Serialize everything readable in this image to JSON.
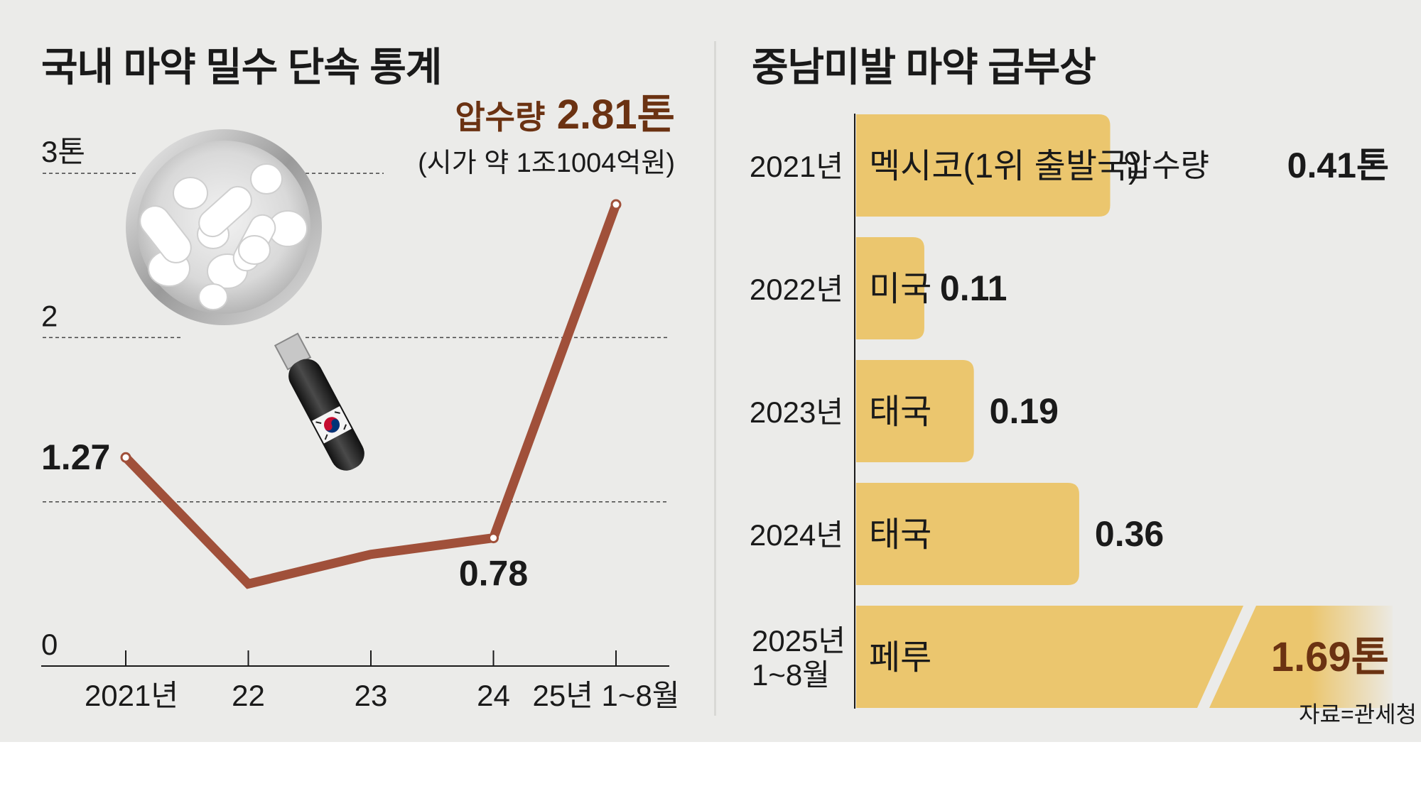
{
  "left": {
    "title": "국내 마약 밀수 단속 통계",
    "peak_note": {
      "label": "압수량",
      "value": "2.81톤",
      "sub": "(시가 약 1조1004억원)"
    }
  },
  "right": {
    "title": "중남미발 마약 급부상"
  },
  "source": "자료=관세청",
  "colors": {
    "line": "#a0503a",
    "bar": "#ebc66e",
    "peak_text": "#6b3212",
    "background": "#ebebe9"
  },
  "chart_data": [
    {
      "type": "line",
      "title": "국내 마약 밀수 단속 통계",
      "ylim": [
        0,
        3
      ],
      "y_ticks": [
        {
          "value": 0,
          "label": "0"
        },
        {
          "value": 2,
          "label": "2"
        },
        {
          "value": 3,
          "label": "3톤"
        }
      ],
      "categories": [
        "2021년",
        "22",
        "23",
        "24",
        "25년 1~8월"
      ],
      "values": [
        1.27,
        0.5,
        0.68,
        0.78,
        2.81
      ],
      "point_labels": [
        {
          "index": 0,
          "text": "1.27"
        },
        {
          "index": 3,
          "text": "0.78"
        }
      ],
      "grid": "dashed"
    },
    {
      "type": "bar",
      "orientation": "horizontal",
      "title": "중남미발 마약 급부상",
      "categories": [
        "2021년",
        "2022년",
        "2023년",
        "2024년",
        "2025년 1~8월"
      ],
      "countries": [
        "멕시코(1위 출발국)",
        "미국",
        "태국",
        "태국",
        "페루"
      ],
      "values": [
        0.41,
        0.11,
        0.19,
        0.36,
        1.69
      ],
      "value_labels": [
        "0.41톤",
        "0.11",
        "0.19",
        "0.36",
        "1.69톤"
      ],
      "value_prefix": "압수량",
      "broken_axis_index": 4
    }
  ]
}
